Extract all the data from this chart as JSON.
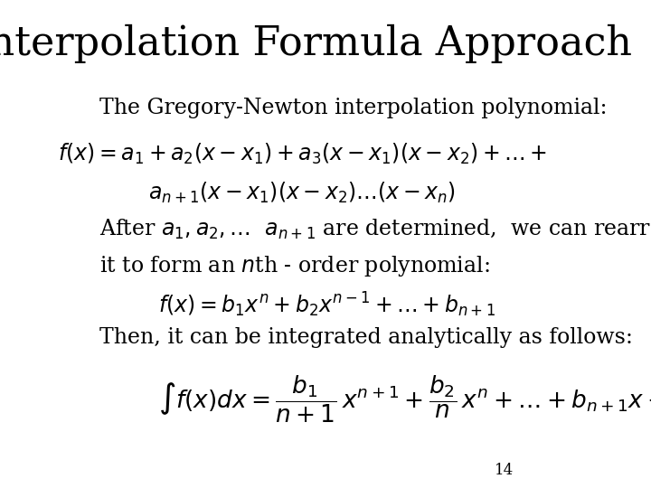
{
  "title": "Interpolation Formula Approach",
  "background_color": "#ffffff",
  "text_color": "#000000",
  "page_number": "14",
  "title_fontsize": 32,
  "body_fontsize": 17,
  "math_fontsize": 17
}
